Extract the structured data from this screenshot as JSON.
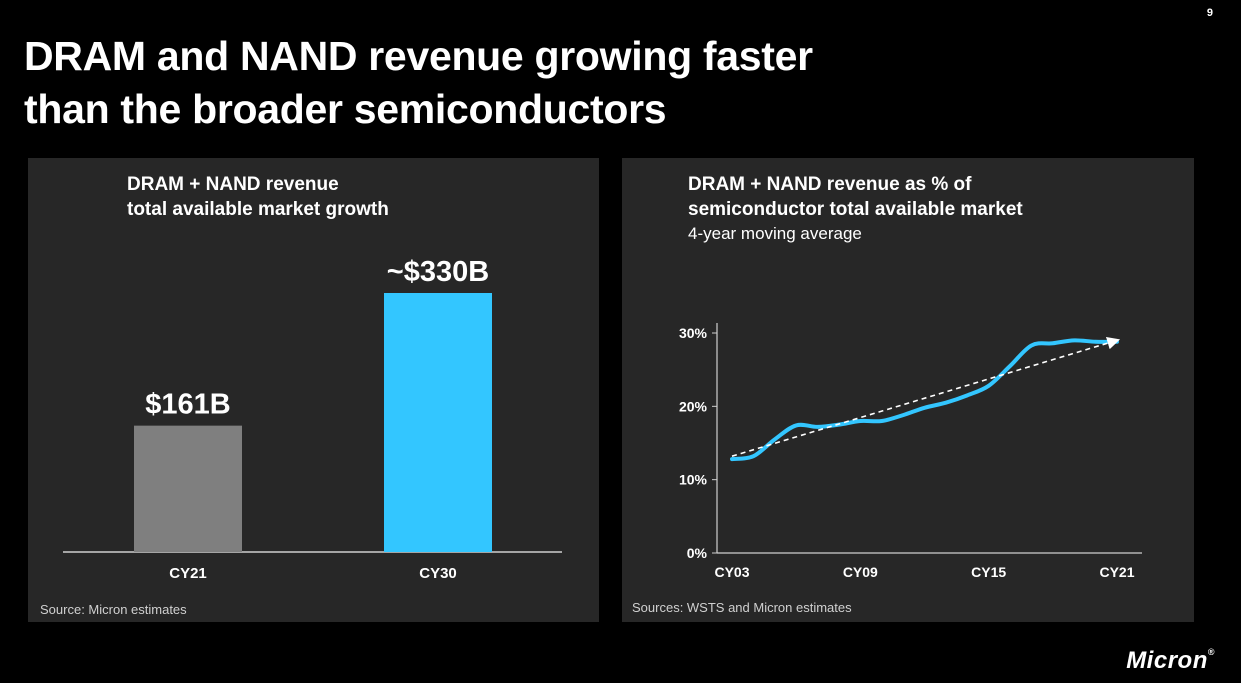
{
  "page_number": "9",
  "title_lines": [
    "DRAM and NAND revenue growing faster",
    "than the broader semiconductors"
  ],
  "left_panel": {
    "title_lines": [
      "DRAM + NAND revenue",
      "total available market growth"
    ],
    "source": "Source: Micron estimates"
  },
  "right_panel": {
    "title_lines": [
      "DRAM + NAND revenue as % of",
      "semiconductor total available market"
    ],
    "subtitle": "4-year moving average",
    "source": "Sources: WSTS and Micron estimates"
  },
  "logo": {
    "text": "Micron",
    "mark": "®"
  },
  "colors": {
    "background": "#000000",
    "panel": "#272727",
    "bar_gray": "#7f7f7f",
    "bar_blue": "#33c6ff",
    "line_blue": "#33c6ff",
    "trend": "#ffffff"
  },
  "chart_data": [
    {
      "type": "bar",
      "categories": [
        "CY21",
        "CY30"
      ],
      "values": [
        161,
        330
      ],
      "data_labels": [
        "$161B",
        "~$330B"
      ],
      "bar_colors": [
        "#7f7f7f",
        "#33c6ff"
      ],
      "ylim": [
        0,
        330
      ],
      "grid": false
    },
    {
      "type": "line",
      "x_ticks": [
        "CY03",
        "CY09",
        "CY15",
        "CY21"
      ],
      "y_ticks": [
        "0%",
        "10%",
        "20%",
        "30%"
      ],
      "ylim": [
        0,
        30
      ],
      "xlim": [
        2003,
        2021
      ],
      "grid": false,
      "series": [
        {
          "line_style": "solid",
          "color": "#33c6ff",
          "x": [
            2003,
            2004,
            2005,
            2006,
            2007,
            2008,
            2009,
            2010,
            2011,
            2012,
            2013,
            2014,
            2015,
            2016,
            2017,
            2018,
            2019,
            2020,
            2021
          ],
          "y": [
            12.8,
            13.2,
            15.5,
            17.4,
            17.2,
            17.5,
            18.0,
            18.0,
            18.8,
            19.8,
            20.5,
            21.5,
            22.8,
            25.5,
            28.3,
            28.6,
            29.0,
            28.8,
            28.8
          ]
        },
        {
          "line_style": "dashed",
          "color": "#ffffff",
          "x": [
            2003,
            2021
          ],
          "y": [
            13.2,
            29.0
          ]
        }
      ]
    }
  ]
}
